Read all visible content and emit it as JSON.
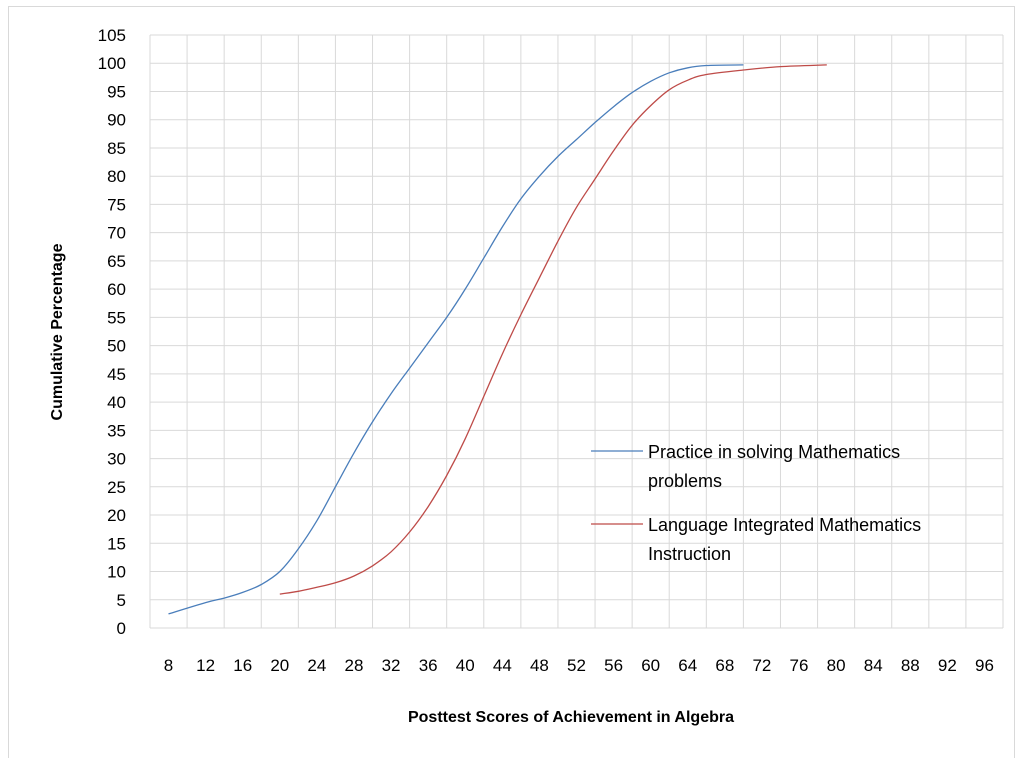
{
  "chart_data": {
    "type": "line",
    "title": "",
    "xlabel": "Posttest Scores of Achievement in Algebra",
    "ylabel": "Cumulative Percentage",
    "xlim": [
      6,
      98
    ],
    "ylim": [
      0,
      105
    ],
    "x_ticks": [
      8,
      12,
      16,
      20,
      24,
      28,
      32,
      36,
      40,
      44,
      48,
      52,
      56,
      60,
      64,
      68,
      72,
      76,
      80,
      84,
      88,
      92,
      96
    ],
    "y_ticks": [
      0,
      5,
      10,
      15,
      20,
      25,
      30,
      35,
      40,
      45,
      50,
      55,
      60,
      65,
      70,
      75,
      80,
      85,
      90,
      95,
      100,
      105
    ],
    "grid": true,
    "legend_position": "right",
    "series": [
      {
        "name": "Practice in solving Mathematics problems",
        "color": "#4a7ebb",
        "points": [
          [
            8,
            2.5
          ],
          [
            12,
            4.5
          ],
          [
            14,
            5.3
          ],
          [
            16,
            6.3
          ],
          [
            18,
            7.7
          ],
          [
            20,
            10
          ],
          [
            22,
            14
          ],
          [
            24,
            19
          ],
          [
            26,
            25
          ],
          [
            28,
            31
          ],
          [
            30,
            36.5
          ],
          [
            32,
            41.5
          ],
          [
            34,
            46
          ],
          [
            36,
            50.5
          ],
          [
            38,
            55
          ],
          [
            40,
            60
          ],
          [
            42,
            65.5
          ],
          [
            44,
            71
          ],
          [
            46,
            76
          ],
          [
            48,
            80
          ],
          [
            50,
            83.5
          ],
          [
            52,
            86.5
          ],
          [
            54,
            89.5
          ],
          [
            56,
            92.3
          ],
          [
            58,
            94.8
          ],
          [
            60,
            96.8
          ],
          [
            62,
            98.3
          ],
          [
            64,
            99.2
          ],
          [
            66,
            99.6
          ],
          [
            70,
            99.7
          ]
        ]
      },
      {
        "name": "Language Integrated Mathematics Instruction",
        "color": "#be4b48",
        "points": [
          [
            20,
            6
          ],
          [
            22,
            6.5
          ],
          [
            24,
            7.2
          ],
          [
            26,
            8
          ],
          [
            28,
            9.2
          ],
          [
            30,
            11
          ],
          [
            32,
            13.5
          ],
          [
            34,
            17
          ],
          [
            36,
            21.5
          ],
          [
            38,
            27
          ],
          [
            40,
            33.5
          ],
          [
            42,
            41
          ],
          [
            44,
            48.5
          ],
          [
            46,
            55.5
          ],
          [
            48,
            62
          ],
          [
            50,
            68.5
          ],
          [
            52,
            74.5
          ],
          [
            54,
            79.5
          ],
          [
            56,
            84.5
          ],
          [
            58,
            89
          ],
          [
            60,
            92.5
          ],
          [
            62,
            95.3
          ],
          [
            64,
            97
          ],
          [
            66,
            98
          ],
          [
            70,
            98.8
          ],
          [
            74,
            99.4
          ],
          [
            79,
            99.7
          ]
        ]
      }
    ]
  }
}
